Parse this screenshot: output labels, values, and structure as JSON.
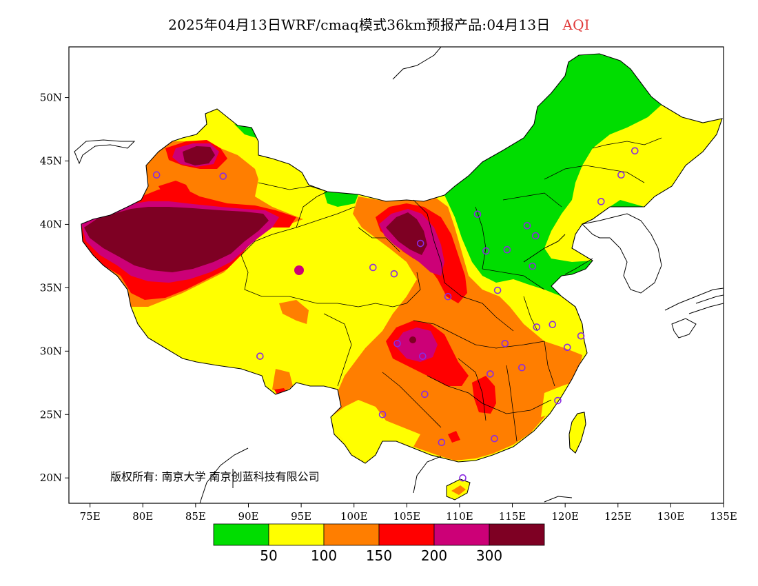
{
  "header": {
    "title": "2025年04月13日WRF/cmaq模式36km预报产品:04月13日",
    "variable": "AQI"
  },
  "map": {
    "lon_range": [
      73,
      135
    ],
    "lat_range": [
      18,
      54
    ],
    "lon_ticks": [
      {
        "value": 75,
        "label": "75E"
      },
      {
        "value": 80,
        "label": "80E"
      },
      {
        "value": 85,
        "label": "85E"
      },
      {
        "value": 90,
        "label": "90E"
      },
      {
        "value": 95,
        "label": "95E"
      },
      {
        "value": 100,
        "label": "100E"
      },
      {
        "value": 105,
        "label": "105E"
      },
      {
        "value": 110,
        "label": "110E"
      },
      {
        "value": 115,
        "label": "115E"
      },
      {
        "value": 120,
        "label": "120E"
      },
      {
        "value": 125,
        "label": "125E"
      },
      {
        "value": 130,
        "label": "130E"
      },
      {
        "value": 135,
        "label": "135E"
      }
    ],
    "lat_ticks": [
      {
        "value": 20,
        "label": "20N"
      },
      {
        "value": 25,
        "label": "25N"
      },
      {
        "value": 30,
        "label": "30N"
      },
      {
        "value": 35,
        "label": "35N"
      },
      {
        "value": 40,
        "label": "40N"
      },
      {
        "value": 45,
        "label": "45N"
      },
      {
        "value": 50,
        "label": "50N"
      }
    ],
    "copyright": "版权所有: 南京大学  南京创蓝科技有限公司"
  },
  "colorbar": {
    "colors": [
      "#00dd00",
      "#ffff00",
      "#ff7e00",
      "#ff0000",
      "#cc0077",
      "#7e0023"
    ],
    "labels": [
      "50",
      "100",
      "150",
      "200",
      "300"
    ]
  },
  "colors": {
    "good": "#00dd00",
    "moderate": "#ffff00",
    "usg": "#ff7e00",
    "unhealthy": "#ff0000",
    "very_unhealthy": "#cc0077",
    "hazardous": "#7e0023",
    "station": "#8a2be2"
  },
  "stations": [
    [
      87.6,
      43.8
    ],
    [
      81.3,
      43.9
    ],
    [
      91.1,
      29.6
    ],
    [
      101.8,
      36.6
    ],
    [
      103.8,
      36.1
    ],
    [
      106.3,
      38.5
    ],
    [
      111.7,
      40.8
    ],
    [
      112.5,
      37.9
    ],
    [
      114.5,
      38.0
    ],
    [
      116.4,
      39.9
    ],
    [
      117.2,
      39.1
    ],
    [
      116.9,
      36.7
    ],
    [
      113.6,
      34.8
    ],
    [
      108.9,
      34.3
    ],
    [
      104.1,
      30.6
    ],
    [
      106.5,
      29.6
    ],
    [
      106.7,
      26.6
    ],
    [
      102.7,
      25.0
    ],
    [
      108.3,
      22.8
    ],
    [
      113.3,
      23.1
    ],
    [
      110.3,
      20.0
    ],
    [
      119.3,
      26.1
    ],
    [
      115.9,
      28.7
    ],
    [
      112.9,
      28.2
    ],
    [
      114.3,
      30.6
    ],
    [
      117.3,
      31.9
    ],
    [
      118.8,
      32.1
    ],
    [
      120.2,
      30.3
    ],
    [
      121.5,
      31.2
    ],
    [
      123.4,
      41.8
    ],
    [
      125.3,
      43.9
    ],
    [
      126.6,
      45.8
    ]
  ]
}
